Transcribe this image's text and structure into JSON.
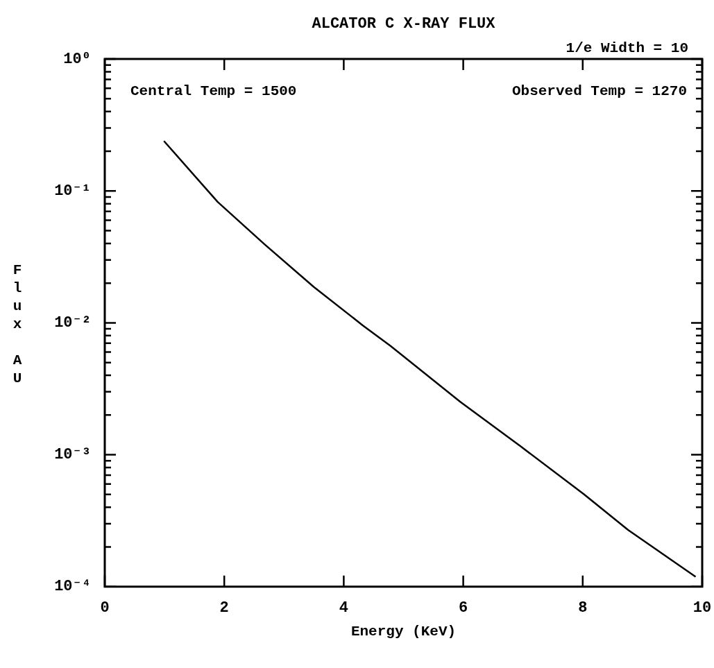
{
  "chart_data": {
    "type": "line",
    "title": "ALCATOR C X-RAY FLUX",
    "xlabel": "Energy (KeV)",
    "ylabel": "Flux AU",
    "log": "y",
    "grid": false,
    "legend": false,
    "marker": "none",
    "line_style": "solid",
    "annotations": [
      "1/e Width = 10",
      "Central Temp = 1500",
      "Observed Temp = 1270"
    ],
    "xlim": [
      0,
      10
    ],
    "xticks": [
      0,
      2,
      4,
      6,
      8,
      10
    ],
    "ylim": [
      0.0001,
      1
    ],
    "yticks": [
      {
        "value": 0.0001,
        "label": "10⁻⁴"
      },
      {
        "value": 0.0002,
        "label": null
      },
      {
        "value": 0.0003,
        "label": null
      },
      {
        "value": 0.0004,
        "label": null
      },
      {
        "value": 0.0005,
        "label": null
      },
      {
        "value": 0.0006,
        "label": null
      },
      {
        "value": 0.0007,
        "label": null
      },
      {
        "value": 0.0008,
        "label": null
      },
      {
        "value": 0.0009,
        "label": null
      },
      {
        "value": 0.001,
        "label": "10⁻³"
      },
      {
        "value": 0.002,
        "label": null
      },
      {
        "value": 0.003,
        "label": null
      },
      {
        "value": 0.004,
        "label": null
      },
      {
        "value": 0.005,
        "label": null
      },
      {
        "value": 0.006,
        "label": null
      },
      {
        "value": 0.007,
        "label": null
      },
      {
        "value": 0.008,
        "label": null
      },
      {
        "value": 0.009,
        "label": null
      },
      {
        "value": 0.01,
        "label": "10⁻²"
      },
      {
        "value": 0.02,
        "label": null
      },
      {
        "value": 0.03,
        "label": null
      },
      {
        "value": 0.04,
        "label": null
      },
      {
        "value": 0.05,
        "label": null
      },
      {
        "value": 0.06,
        "label": null
      },
      {
        "value": 0.07,
        "label": null
      },
      {
        "value": 0.08,
        "label": null
      },
      {
        "value": 0.09,
        "label": null
      },
      {
        "value": 0.1,
        "label": "10⁻¹"
      },
      {
        "value": 0.2,
        "label": null
      },
      {
        "value": 0.3,
        "label": null
      },
      {
        "value": 0.4,
        "label": null
      },
      {
        "value": 0.5,
        "label": null
      },
      {
        "value": 0.6,
        "label": null
      },
      {
        "value": 0.7,
        "label": null
      },
      {
        "value": 0.8,
        "label": null
      },
      {
        "value": 0.9,
        "label": null
      },
      {
        "value": 1,
        "label": "10⁰"
      }
    ],
    "x": [
      0.99,
      1.89,
      2.68,
      3.5,
      4.32,
      4.78,
      5.95,
      6.97,
      8.02,
      8.76,
      9.89
    ],
    "series": [
      {
        "color": "#000000",
        "values": [
          0.239,
          0.0824,
          0.0392,
          0.0187,
          0.00955,
          0.0067,
          0.00252,
          0.00115,
          0.000502,
          0.000269,
          0.000119
        ]
      }
    ]
  }
}
